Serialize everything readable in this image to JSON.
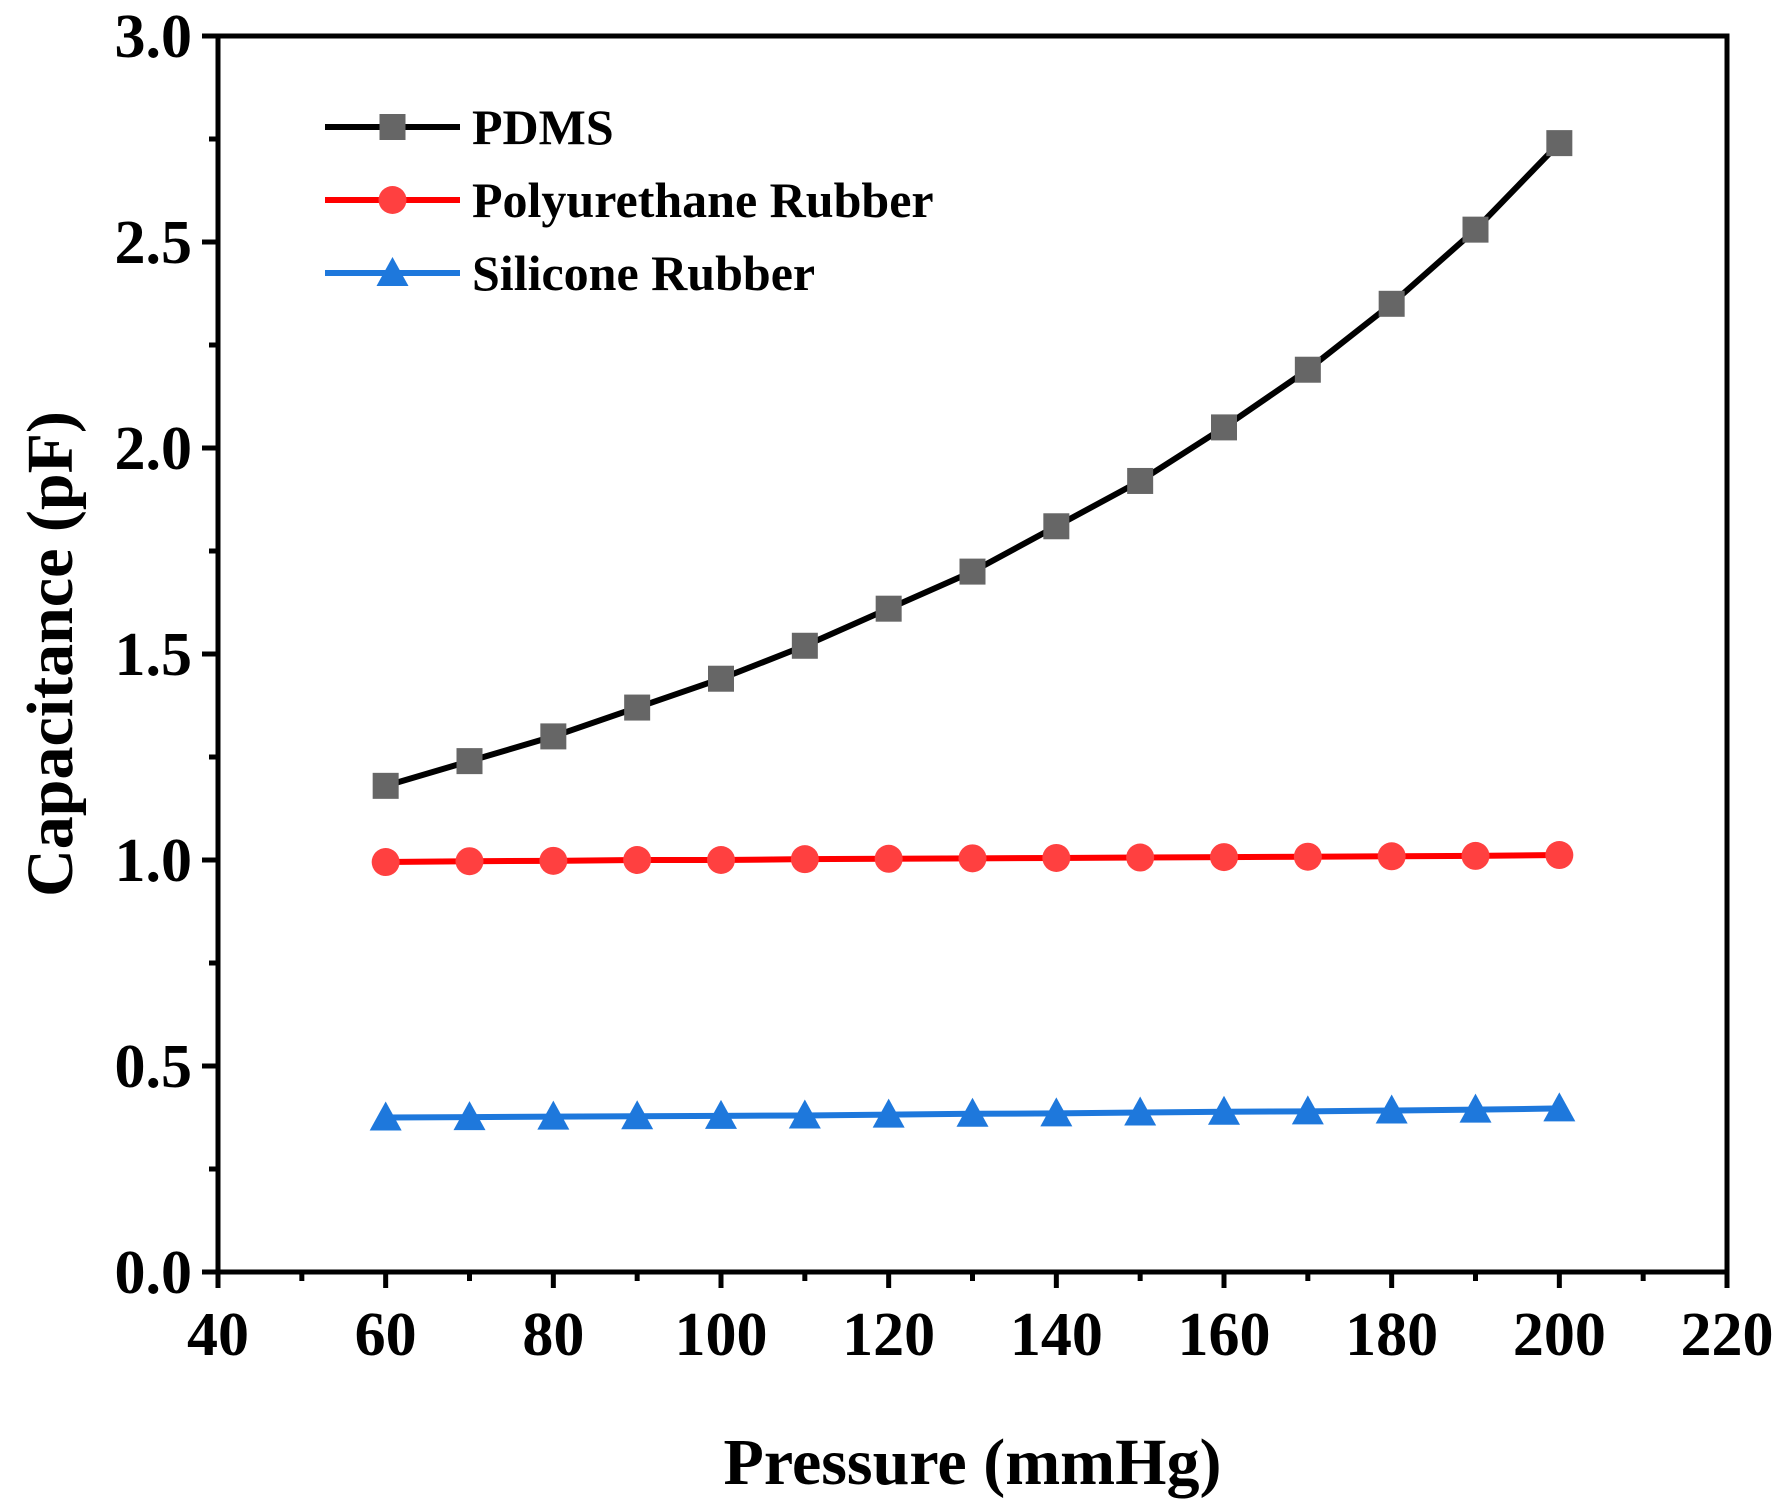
{
  "chart_data": {
    "type": "line",
    "title": "",
    "xlabel": "Pressure (mmHg)",
    "ylabel": "Capacitance (pF)",
    "xlim": [
      40,
      220
    ],
    "ylim": [
      0.0,
      3.0
    ],
    "x_major_ticks": [
      40,
      60,
      80,
      100,
      120,
      140,
      160,
      180,
      200,
      220
    ],
    "x_tick_labels": [
      "40",
      "60",
      "80",
      "100",
      "120",
      "140",
      "160",
      "180",
      "200",
      "220"
    ],
    "x_minor_ticks": [
      50,
      70,
      90,
      110,
      130,
      150,
      170,
      190,
      210
    ],
    "y_major_ticks": [
      0.0,
      0.5,
      1.0,
      1.5,
      2.0,
      2.5,
      3.0
    ],
    "y_tick_labels": [
      "0.0",
      "0.5",
      "1.0",
      "1.5",
      "2.0",
      "2.5",
      "3.0"
    ],
    "y_minor_ticks": [
      0.25,
      0.75,
      1.25,
      1.75,
      2.25,
      2.75
    ],
    "grid": false,
    "legend_position": "top-left",
    "x": [
      60,
      70,
      80,
      90,
      100,
      110,
      120,
      130,
      140,
      150,
      160,
      170,
      180,
      190,
      200
    ],
    "series": [
      {
        "name": "PDMS",
        "line_color": "#000000",
        "marker": "square",
        "marker_color": "#666666",
        "values": [
          1.18,
          1.24,
          1.3,
          1.37,
          1.44,
          1.52,
          1.61,
          1.7,
          1.81,
          1.92,
          2.05,
          2.19,
          2.35,
          2.53,
          2.74
        ]
      },
      {
        "name": "Polyurethane Rubber",
        "line_color": "#ff0000",
        "marker": "circle",
        "marker_color": "#ff4040",
        "values": [
          0.995,
          0.997,
          0.998,
          1.0,
          1.0,
          1.002,
          1.003,
          1.004,
          1.005,
          1.006,
          1.007,
          1.008,
          1.009,
          1.01,
          1.012
        ]
      },
      {
        "name": "Silicone Rubber",
        "line_color": "#1e78dc",
        "marker": "triangle",
        "marker_color": "#1e78dc",
        "values": [
          0.375,
          0.376,
          0.377,
          0.378,
          0.379,
          0.38,
          0.382,
          0.384,
          0.385,
          0.387,
          0.389,
          0.39,
          0.392,
          0.394,
          0.397
        ]
      }
    ]
  }
}
